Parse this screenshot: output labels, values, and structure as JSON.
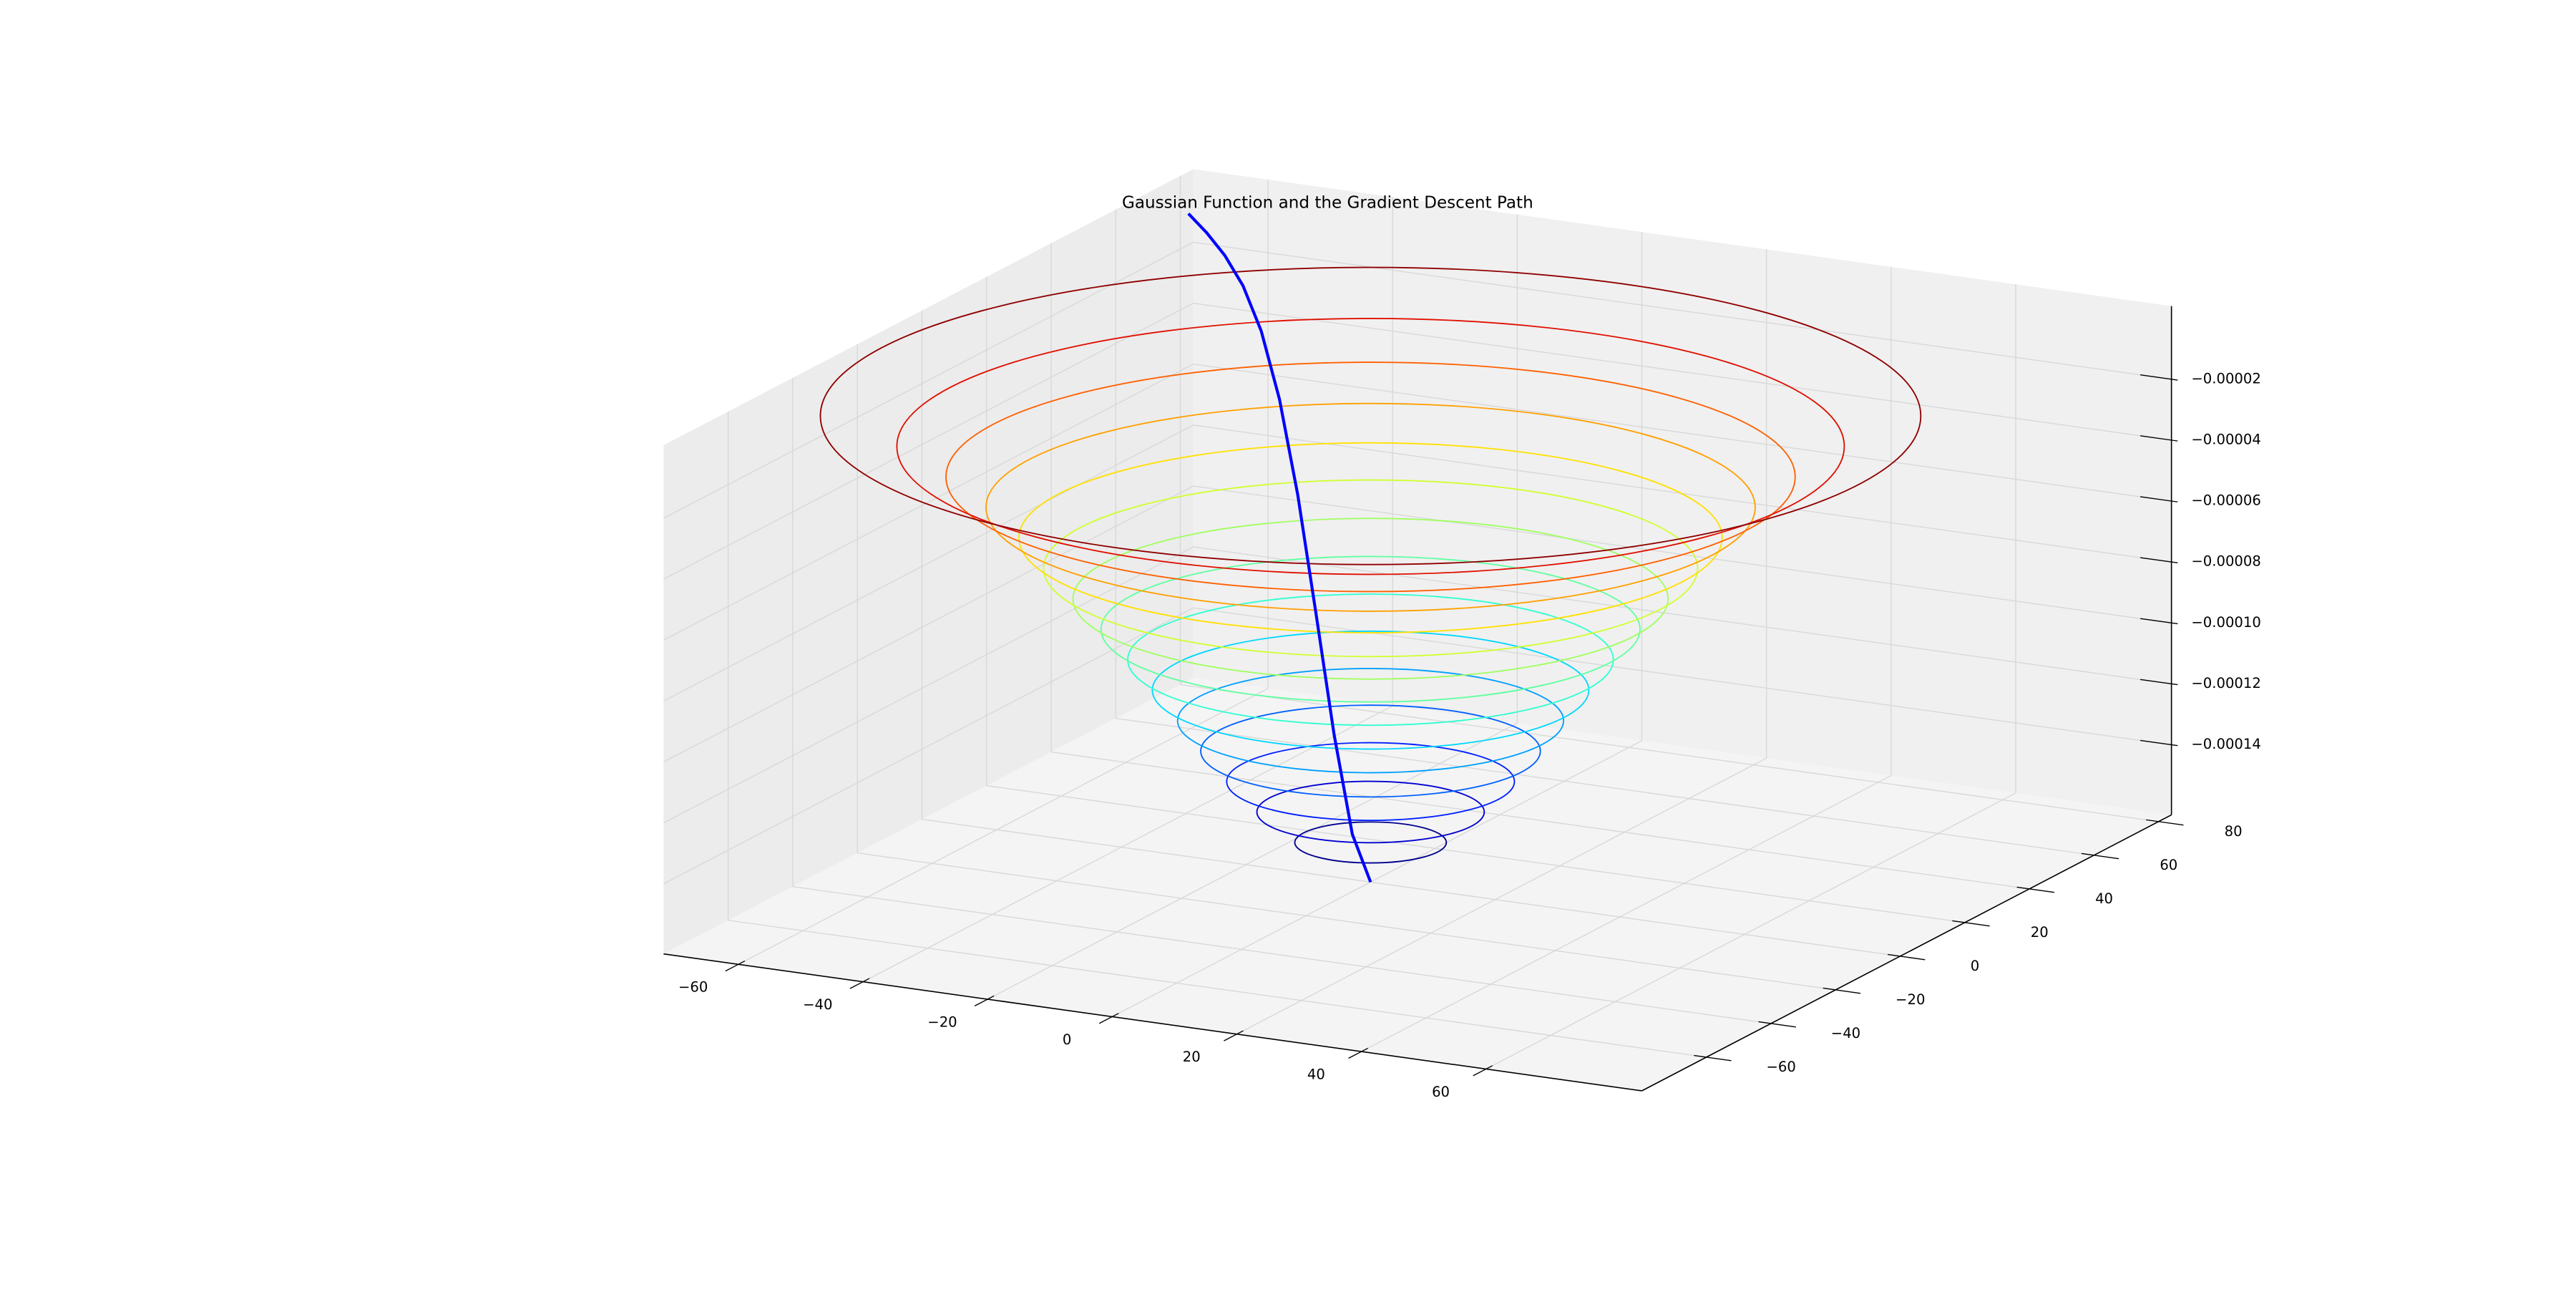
{
  "chart_data": {
    "type": "contour3d",
    "title": "Gaussian Function and the Gradient Descent Path",
    "grid": true,
    "xlim": [
      -72,
      85
    ],
    "ylim": [
      -80,
      84
    ],
    "zlim": [
      -0.000163,
      4e-06
    ],
    "xticks": [
      {
        "value": -60,
        "label": "−60"
      },
      {
        "value": -40,
        "label": "−40"
      },
      {
        "value": -20,
        "label": "−20"
      },
      0,
      20,
      40,
      60
    ],
    "yticks": [
      {
        "value": -60,
        "label": "−60"
      },
      {
        "value": -40,
        "label": "−40"
      },
      {
        "value": -20,
        "label": "−20"
      },
      0,
      20,
      40,
      60,
      80
    ],
    "zticks": [
      {
        "value": -0.00014,
        "label": "−0.00014"
      },
      {
        "value": -0.00012,
        "label": "−0.00012"
      },
      {
        "value": -0.0001,
        "label": "−0.00010"
      },
      {
        "value": -8e-05,
        "label": "−0.00008"
      },
      {
        "value": -6e-05,
        "label": "−0.00006"
      },
      {
        "value": -4e-05,
        "label": "−0.00004"
      },
      {
        "value": -2e-05,
        "label": "−0.00002"
      }
    ],
    "contours": {
      "levels": [
        -0.00015,
        -0.00014,
        -0.00013,
        -0.00012,
        -0.00011,
        -0.0001,
        -9e-05,
        -8e-05,
        -7e-05,
        -6e-05,
        -5e-05,
        -4e-05,
        -3e-05,
        -2e-05,
        -1e-05
      ],
      "radii": [
        10.8,
        16.2,
        20.5,
        24.2,
        27.5,
        31.1,
        34.6,
        38.4,
        42.4,
        46.6,
        50.1,
        54.8,
        60.5,
        67.5,
        78.4
      ],
      "colors": [
        "#000090",
        "#0000d0",
        "#0020ff",
        "#0060ff",
        "#00a0ff",
        "#00d8ff",
        "#30ffd0",
        "#60ffa0",
        "#a0ff60",
        "#d0ff30",
        "#ffe000",
        "#ffa000",
        "#ff6000",
        "#e01000",
        "#900000"
      ]
    },
    "path": {
      "color": "#0000ff",
      "x": [
        -65,
        -58.5,
        -52,
        -45.5,
        -39,
        -32.5,
        -26,
        -19.5,
        -13,
        -6.5,
        0
      ],
      "y": [
        69,
        62.1,
        55.2,
        48.3,
        41.4,
        34.5,
        27.6,
        20.7,
        13.8,
        6.9,
        0
      ],
      "z": [
        -3e-07,
        -9e-07,
        -2.7e-06,
        -7e-06,
        -1.62e-05,
        -3.29e-05,
        -5.85e-05,
        -9.17e-05,
        -0.000126,
        -0.000153,
        -0.000163
      ]
    }
  }
}
